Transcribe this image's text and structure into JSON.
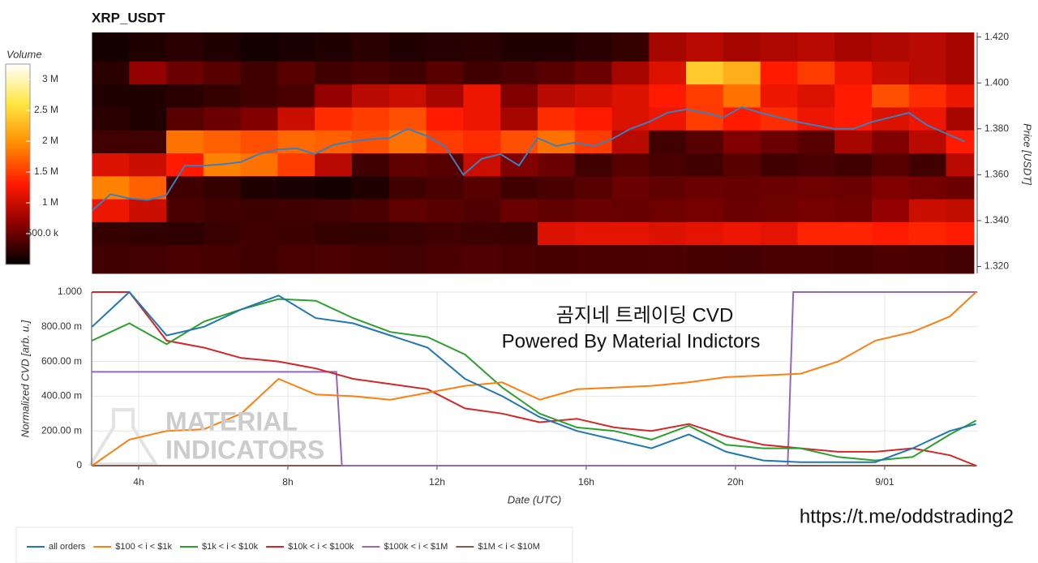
{
  "chart_data": [
    {
      "type": "heatmap",
      "title": "XRP_USDT",
      "ylabel": "Price [USDT]",
      "xlim": [
        2.74,
        26.48
      ],
      "ylim": [
        1.317,
        1.422
      ],
      "yticks": [
        {
          "value": 1.32,
          "label": "1.320"
        },
        {
          "value": 1.34,
          "label": "1.340"
        },
        {
          "value": 1.36,
          "label": "1.360"
        },
        {
          "value": 1.38,
          "label": "1.380"
        },
        {
          "value": 1.4,
          "label": "1.400"
        },
        {
          "value": 1.42,
          "label": "1.420"
        }
      ],
      "x_edges": [
        2.75,
        3.75,
        4.75,
        5.75,
        6.75,
        7.75,
        8.75,
        9.75,
        10.75,
        11.75,
        12.75,
        13.75,
        14.75,
        15.75,
        16.75,
        17.75,
        18.75,
        19.75,
        20.75,
        21.75,
        22.75,
        23.75,
        24.75,
        25.75,
        26.5
      ],
      "y_edges": [
        1.317,
        1.3295,
        1.3395,
        1.3495,
        1.3595,
        1.3695,
        1.3795,
        1.3895,
        1.3995,
        1.4095,
        1.422
      ],
      "z": [
        [
          300000,
          320000,
          350000,
          330000,
          300000,
          340000,
          360000,
          330000,
          310000,
          350000,
          380000,
          340000,
          330000,
          350000,
          340000,
          360000,
          330000,
          320000,
          350000,
          340000,
          330000,
          360000,
          340000,
          320000
        ],
        [
          250000,
          230000,
          220000,
          260000,
          300000,
          280000,
          250000,
          240000,
          260000,
          300000,
          280000,
          270000,
          1100000,
          1150000,
          1150000,
          1100000,
          1150000,
          1200000,
          1150000,
          1350000,
          1350000,
          1300000,
          1350000,
          1300000
        ],
        [
          1200000,
          1000000,
          350000,
          300000,
          280000,
          300000,
          320000,
          350000,
          450000,
          400000,
          380000,
          500000,
          450000,
          500000,
          480000,
          520000,
          550000,
          500000,
          520000,
          560000,
          540000,
          700000,
          1000000,
          950000
        ],
        [
          1900000,
          1700000,
          300000,
          250000,
          150000,
          120000,
          100000,
          150000,
          300000,
          350000,
          400000,
          300000,
          350000,
          400000,
          500000,
          450000,
          500000,
          480000,
          500000,
          520000,
          500000,
          600000,
          550000,
          500000
        ],
        [
          1100000,
          1000000,
          1300000,
          1900000,
          1800000,
          1500000,
          900000,
          300000,
          450000,
          400000,
          1000000,
          600000,
          500000,
          300000,
          400000,
          350000,
          300000,
          400000,
          300000,
          350000,
          300000,
          400000,
          300000,
          900000
        ],
        [
          300000,
          300000,
          1800000,
          1700000,
          1600000,
          1750000,
          1700000,
          1600000,
          1800000,
          1500000,
          1400000,
          1600000,
          1800000,
          1500000,
          900000,
          300000,
          400000,
          600000,
          500000,
          400000,
          800000,
          600000,
          900000,
          1300000
        ],
        [
          200000,
          150000,
          400000,
          500000,
          600000,
          1000000,
          1400000,
          1500000,
          1600000,
          1300000,
          1200000,
          800000,
          1400000,
          1300000,
          1100000,
          1200000,
          1500000,
          1300000,
          1400000,
          1200000,
          1300000,
          1100000,
          1200000,
          800000
        ],
        [
          150000,
          150000,
          200000,
          250000,
          300000,
          350000,
          700000,
          900000,
          1000000,
          800000,
          1200000,
          600000,
          900000,
          1000000,
          1100000,
          1300000,
          1500000,
          1800000,
          1200000,
          1100000,
          1300000,
          1600000,
          1400000,
          1200000
        ],
        [
          200000,
          700000,
          500000,
          400000,
          300000,
          400000,
          300000,
          350000,
          300000,
          400000,
          300000,
          350000,
          400000,
          500000,
          800000,
          1100000,
          2400000,
          2200000,
          1300000,
          1500000,
          1200000,
          1000000,
          900000,
          800000
        ],
        [
          100000,
          150000,
          200000,
          150000,
          100000,
          120000,
          150000,
          200000,
          150000,
          180000,
          200000,
          150000,
          150000,
          200000,
          250000,
          800000,
          900000,
          800000,
          850000,
          900000,
          800000,
          850000,
          900000,
          800000
        ]
      ],
      "colorbar_label": "Volume",
      "zlim": [
        0,
        3250000
      ],
      "zticks": [
        {
          "value": 500000,
          "label": "500.0 k"
        },
        {
          "value": 1000000,
          "label": "1 M"
        },
        {
          "value": 1500000,
          "label": "1.5 M"
        },
        {
          "value": 2000000,
          "label": "2 M"
        },
        {
          "value": 2500000,
          "label": "2.5 M"
        },
        {
          "value": 3000000,
          "label": "3 M"
        }
      ],
      "colorscale": [
        "#000000",
        "#8b0000",
        "#ff1a00",
        "#ff8c00",
        "#ffe640",
        "#ffffff"
      ],
      "series": [
        {
          "color": "#3a80c0",
          "x": [
            2.75,
            3.25,
            3.75,
            4.25,
            4.75,
            5.25,
            5.75,
            6.25,
            6.75,
            7.25,
            7.75,
            8.25,
            8.75,
            9.25,
            9.75,
            10.25,
            10.75,
            11.25,
            11.75,
            12.25,
            12.75,
            13.25,
            13.75,
            14.25,
            14.75,
            15.25,
            15.75,
            16.25,
            16.75,
            17.25,
            17.75,
            18.25,
            18.75,
            19.25,
            19.75,
            20.25,
            20.75,
            21.25,
            21.75,
            22.25,
            22.75,
            23.25,
            23.75,
            24.25,
            24.75,
            25.25,
            25.75,
            26.25
          ],
          "values": [
            1.3444,
            1.3515,
            1.3497,
            1.349,
            1.351,
            1.364,
            1.364,
            1.3645,
            1.3655,
            1.369,
            1.371,
            1.3715,
            1.369,
            1.373,
            1.3745,
            1.3755,
            1.376,
            1.38,
            1.377,
            1.3725,
            1.36,
            1.367,
            1.369,
            1.364,
            1.376,
            1.3725,
            1.374,
            1.3725,
            1.3755,
            1.38,
            1.383,
            1.387,
            1.3885,
            1.387,
            1.385,
            1.3895,
            1.387,
            1.385,
            1.383,
            1.3815,
            1.38,
            1.38,
            1.383,
            1.385,
            1.387,
            1.3815,
            1.378,
            1.3745
          ]
        }
      ]
    },
    {
      "type": "line",
      "xlabel": "Date (UTC)",
      "ylabel": "Normalized CVD [arb. u.]",
      "xlim": [
        2.74,
        26.48
      ],
      "ylim": [
        0,
        1
      ],
      "xticks": [
        {
          "value": 4,
          "label": "4h"
        },
        {
          "value": 8,
          "label": "8h"
        },
        {
          "value": 12,
          "label": "12h"
        },
        {
          "value": 16,
          "label": "16h"
        },
        {
          "value": 20,
          "label": "20h"
        },
        {
          "value": 24,
          "label": "9/01"
        }
      ],
      "yticks": [
        0,
        {
          "value": 0.2,
          "label": "200.00 m"
        },
        {
          "value": 0.4,
          "label": "400.00 m"
        },
        {
          "value": 0.6,
          "label": "600.00 m"
        },
        {
          "value": 0.8,
          "label": "800.00 m"
        },
        {
          "value": 1,
          "label": "1.000"
        }
      ],
      "grid": true,
      "x": [
        2.75,
        3.75,
        4.75,
        5.75,
        6.75,
        7.75,
        8.75,
        9.75,
        10.75,
        11.75,
        12.75,
        13.75,
        14.75,
        15.75,
        16.75,
        17.75,
        18.75,
        19.75,
        20.75,
        21.75,
        22.75,
        23.75,
        24.75,
        25.75,
        26.45
      ],
      "series": [
        {
          "name": "all orders",
          "color": "#1f77b4",
          "values": [
            0.8,
            1.0,
            0.75,
            0.8,
            0.9,
            0.98,
            0.85,
            0.82,
            0.75,
            0.68,
            0.5,
            0.4,
            0.28,
            0.2,
            0.15,
            0.1,
            0.18,
            0.08,
            0.03,
            0.02,
            0.02,
            0.02,
            0.1,
            0.2,
            0.24
          ]
        },
        {
          "name": "$100 < i < $1k",
          "color": "#ff7f0e",
          "values": [
            0,
            0.15,
            0.2,
            0.21,
            0.3,
            0.5,
            0.41,
            0.4,
            0.38,
            0.42,
            0.46,
            0.48,
            0.38,
            0.44,
            0.45,
            0.46,
            0.48,
            0.51,
            0.52,
            0.53,
            0.6,
            0.72,
            0.77,
            0.86,
            1.0
          ]
        },
        {
          "name": "$1k < i < $10k",
          "color": "#2ca02c",
          "values": [
            0.72,
            0.82,
            0.7,
            0.83,
            0.9,
            0.96,
            0.95,
            0.85,
            0.77,
            0.74,
            0.64,
            0.45,
            0.3,
            0.22,
            0.2,
            0.15,
            0.23,
            0.12,
            0.1,
            0.1,
            0.05,
            0.03,
            0.05,
            0.18,
            0.26
          ]
        },
        {
          "name": "$10k < i < $100k",
          "color": "#d62728",
          "values": [
            1.0,
            1.0,
            0.72,
            0.68,
            0.62,
            0.6,
            0.56,
            0.5,
            0.47,
            0.44,
            0.33,
            0.3,
            0.25,
            0.27,
            0.22,
            0.2,
            0.24,
            0.17,
            0.12,
            0.1,
            0.08,
            0.08,
            0.1,
            0.06,
            0.0
          ]
        },
        {
          "name": "$100k < i < $1M",
          "color": "#9467bd",
          "x": [
            2.74,
            9.3,
            9.45,
            21.4,
            21.55,
            26.48
          ],
          "values": [
            0.54,
            0.54,
            0,
            0,
            1,
            1
          ]
        },
        {
          "name": "$1M < i < $10M",
          "color": "#8c564b",
          "values": [
            0,
            0,
            0,
            0,
            0,
            0,
            0,
            0,
            0,
            0,
            0,
            0,
            0,
            0,
            0,
            0,
            0,
            0,
            0,
            0,
            0,
            0,
            0,
            0,
            0
          ]
        }
      ],
      "annotations": [
        "곰지네 트레이딩 CVD",
        "Powered By Material Indictors",
        "MATERIAL",
        "INDICATORS",
        "https://t.me/oddstrading2"
      ]
    }
  ]
}
